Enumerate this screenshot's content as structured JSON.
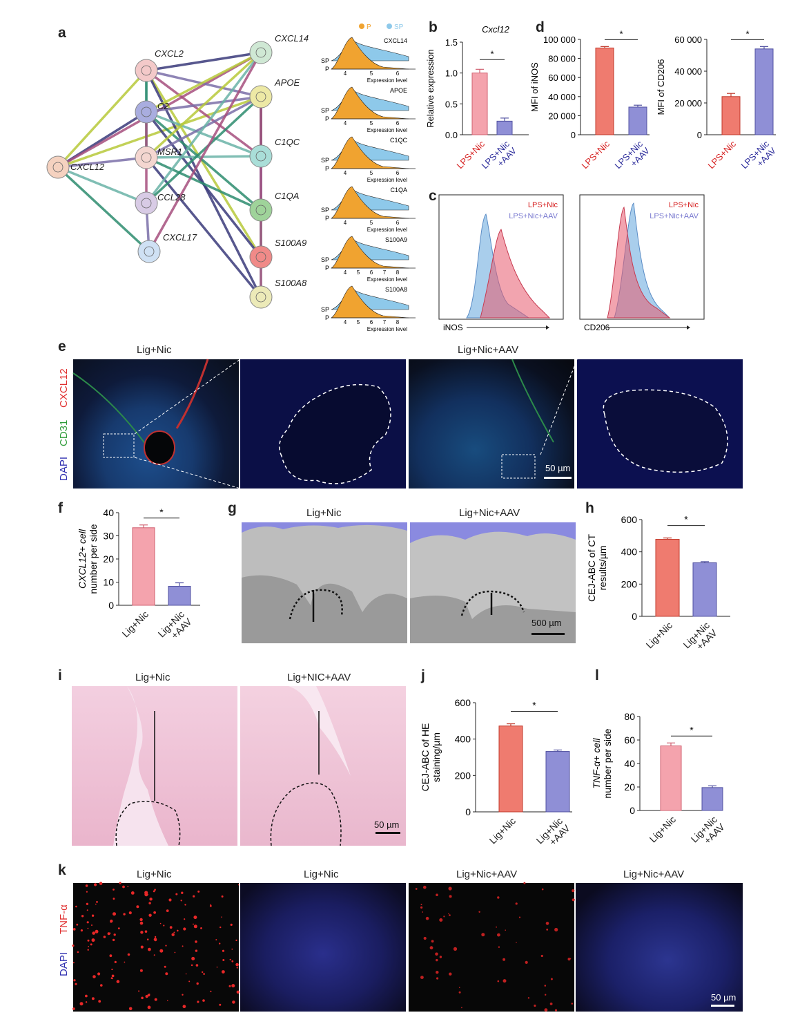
{
  "panels": {
    "a": "a",
    "b": "b",
    "c": "c",
    "d": "d",
    "e": "e",
    "f": "f",
    "g": "g",
    "h": "h",
    "i": "i",
    "j": "j",
    "k": "k",
    "l": "l"
  },
  "network": {
    "nodes": [
      "CXCL14",
      "CXCL2",
      "C2",
      "APOE",
      "CXCL12",
      "MSR1",
      "C1QC",
      "CCL28",
      "C1QA",
      "CXCL17",
      "S100A9",
      "S100A8"
    ]
  },
  "ridge": {
    "legend": [
      "P",
      "SP"
    ],
    "ylabels": [
      "SP",
      "P"
    ],
    "xlabel": "Expression level",
    "genes": [
      {
        "name": "CXCL14",
        "ticks": [
          "4",
          "5",
          "6"
        ]
      },
      {
        "name": "APOE",
        "ticks": [
          "4",
          "5",
          "6"
        ]
      },
      {
        "name": "C1QC",
        "ticks": [
          "4",
          "5",
          "6"
        ]
      },
      {
        "name": "C1QA",
        "ticks": [
          "4",
          "5",
          "6"
        ]
      },
      {
        "name": "S100A9",
        "ticks": [
          "4",
          "5",
          "6",
          "7",
          "8"
        ]
      },
      {
        "name": "S100A8",
        "ticks": [
          "4",
          "5",
          "6",
          "7",
          "8"
        ]
      }
    ]
  },
  "colors": {
    "red": "#ef7b6f",
    "pink": "#f4a3ad",
    "blue": "#8f8fd6",
    "darkred": "#d62020",
    "navy": "#2a2a9a",
    "teal": "#a8d8f0"
  },
  "flow": {
    "iNOS": {
      "xlabel": "iNOS",
      "legend": [
        "LPS+Nic",
        "LPS+Nic+AAV"
      ]
    },
    "CD206": {
      "xlabel": "CD206",
      "legend": [
        "LPS+Nic",
        "LPS+Nic+AAV"
      ]
    }
  },
  "micro_e": {
    "titles": [
      "Lig+Nic",
      "Lig+Nic+AAV"
    ],
    "channels": [
      "CXCL12",
      "CD31",
      "DAPI"
    ],
    "scale": "50 µm"
  },
  "micro_g": {
    "titles": [
      "Lig+Nic",
      "Lig+Nic+AAV"
    ],
    "scale": "500 µm"
  },
  "micro_i": {
    "titles": [
      "Lig+Nic",
      "Lig+NIC+AAV"
    ],
    "scale": "50 µm"
  },
  "micro_k": {
    "titles": [
      "Lig+Nic",
      "Lig+Nic",
      "Lig+Nic+AAV",
      "Lig+Nic+AAV"
    ],
    "channels": [
      "TNF-α",
      "DAPI"
    ],
    "scale": "50 µm"
  },
  "chart_data": [
    {
      "id": "b",
      "type": "bar",
      "title": "Cxcl12",
      "ylabel": "Relative expression",
      "categories": [
        "LPS+Nic",
        "LPS+Nic\n+AAV"
      ],
      "values": [
        1.0,
        0.22
      ],
      "errors": [
        0.06,
        0.05
      ],
      "ylim": [
        0,
        1.5
      ],
      "yticks": [
        "0.0",
        "0.5",
        "1.0",
        "1.5"
      ],
      "significance": "*"
    },
    {
      "id": "d1",
      "type": "bar",
      "title": "",
      "ylabel": "MFI of iNOS",
      "categories": [
        "LPS+Nic",
        "LPS+Nic\n+AAV"
      ],
      "values": [
        91000,
        29000
      ],
      "errors": [
        1500,
        2000
      ],
      "ylim": [
        0,
        100000
      ],
      "yticks": [
        "0",
        "20 000",
        "40 000",
        "60 000",
        "80 000",
        "100 000"
      ],
      "significance": "*"
    },
    {
      "id": "d2",
      "type": "bar",
      "title": "",
      "ylabel": "MFI of CD206",
      "categories": [
        "LPS+Nic",
        "LPS+Nic\n+AAV"
      ],
      "values": [
        24000,
        54000
      ],
      "errors": [
        2000,
        1500
      ],
      "ylim": [
        0,
        60000
      ],
      "yticks": [
        "0",
        "20 000",
        "40 000",
        "60 000"
      ],
      "significance": "*"
    },
    {
      "id": "f",
      "type": "bar",
      "title": "",
      "ylabel": "CXCL12+ cell\nnumber per side",
      "categories": [
        "Lig+Nic",
        "Lig+Nic\n+AAV"
      ],
      "values": [
        33.5,
        8.2
      ],
      "errors": [
        1.2,
        1.5
      ],
      "ylim": [
        0,
        40
      ],
      "yticks": [
        "0",
        "10",
        "20",
        "30",
        "40"
      ],
      "significance": "*"
    },
    {
      "id": "h",
      "type": "bar",
      "title": "",
      "ylabel": "CEJ-ABC of CT\nresults/µm",
      "categories": [
        "Lig+Nic",
        "Lig+Nic\n+AAV"
      ],
      "values": [
        478,
        332
      ],
      "errors": [
        8,
        7
      ],
      "ylim": [
        0,
        600
      ],
      "yticks": [
        "0",
        "200",
        "400",
        "600"
      ],
      "significance": "*"
    },
    {
      "id": "j",
      "type": "bar",
      "title": "",
      "ylabel": "CEJ-ABC of HE\nstaining/µm",
      "categories": [
        "Lig+Nic",
        "Lig+Nic\n+AAV"
      ],
      "values": [
        472,
        332
      ],
      "errors": [
        12,
        8
      ],
      "ylim": [
        0,
        600
      ],
      "yticks": [
        "0",
        "200",
        "400",
        "600"
      ],
      "significance": "*"
    },
    {
      "id": "l",
      "type": "bar",
      "title": "",
      "ylabel": "TNF-α+ cell\nnumber per side",
      "categories": [
        "Lig+Nic",
        "Lig+Nic\n+AAV"
      ],
      "values": [
        55,
        19.5
      ],
      "errors": [
        2.5,
        1.5
      ],
      "ylim": [
        0,
        80
      ],
      "yticks": [
        "0",
        "20",
        "40",
        "60",
        "80"
      ],
      "significance": "*"
    }
  ]
}
